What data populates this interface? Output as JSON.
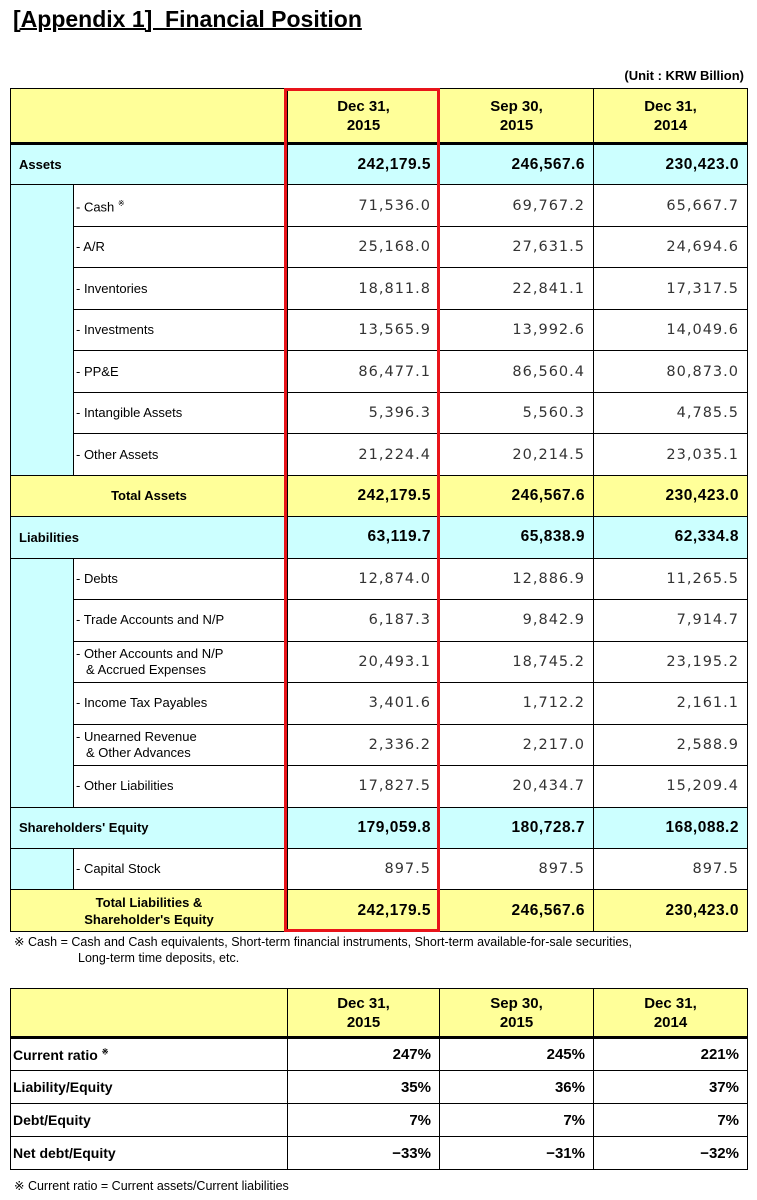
{
  "title": "[Appendix 1]  Financial Position",
  "unit": "(Unit : KRW Billion)",
  "columns": [
    [
      "Dec 31,",
      "2015"
    ],
    [
      "Sep 30,",
      "2015"
    ],
    [
      "Dec 31,",
      "2014"
    ]
  ],
  "rows": [
    {
      "type": "sec",
      "label": "Assets",
      "values": [
        "242,179.5",
        "246,567.6",
        "230,423.0"
      ]
    },
    {
      "type": "sub",
      "label": "- Cash",
      "mark": "※",
      "values": [
        "71,536.0",
        "69,767.2",
        "65,667.7"
      ]
    },
    {
      "type": "sub",
      "label": "- A/R",
      "values": [
        "25,168.0",
        "27,631.5",
        "24,694.6"
      ]
    },
    {
      "type": "sub",
      "label": "- Inventories",
      "values": [
        "18,811.8",
        "22,841.1",
        "17,317.5"
      ]
    },
    {
      "type": "sub",
      "label": "- Investments",
      "values": [
        "13,565.9",
        "13,992.6",
        "14,049.6"
      ]
    },
    {
      "type": "sub",
      "label": "- PP&E",
      "values": [
        "86,477.1",
        "86,560.4",
        "80,873.0"
      ]
    },
    {
      "type": "sub",
      "label": "- Intangible Assets",
      "values": [
        "5,396.3",
        "5,560.3",
        "4,785.5"
      ]
    },
    {
      "type": "sub",
      "label": "- Other Assets",
      "values": [
        "21,224.4",
        "20,214.5",
        "23,035.1"
      ]
    },
    {
      "type": "tot",
      "label": "Total Assets",
      "values": [
        "242,179.5",
        "246,567.6",
        "230,423.0"
      ]
    },
    {
      "type": "sec",
      "label": "Liabilities",
      "values": [
        "63,119.7",
        "65,838.9",
        "62,334.8"
      ]
    },
    {
      "type": "sub",
      "label": "- Debts",
      "values": [
        "12,874.0",
        "12,886.9",
        "11,265.5"
      ]
    },
    {
      "type": "sub",
      "label": "- Trade Accounts and N/P",
      "values": [
        "6,187.3",
        "9,842.9",
        "7,914.7"
      ]
    },
    {
      "type": "sub",
      "label": "- Other Accounts and N/P",
      "label2": "& Accrued Expenses",
      "values": [
        "20,493.1",
        "18,745.2",
        "23,195.2"
      ]
    },
    {
      "type": "sub",
      "label": "- Income Tax Payables",
      "values": [
        "3,401.6",
        "1,712.2",
        "2,161.1"
      ]
    },
    {
      "type": "sub",
      "label": "- Unearned Revenue",
      "label2": "& Other Advances",
      "values": [
        "2,336.2",
        "2,217.0",
        "2,588.9"
      ]
    },
    {
      "type": "sub",
      "label": "- Other Liabilities",
      "values": [
        "17,827.5",
        "20,434.7",
        "15,209.4"
      ]
    },
    {
      "type": "sec",
      "label": "Shareholders' Equity",
      "values": [
        "179,059.8",
        "180,728.7",
        "168,088.2"
      ]
    },
    {
      "type": "sub",
      "label": "- Capital Stock",
      "values": [
        "897.5",
        "897.5",
        "897.5"
      ]
    },
    {
      "type": "tot",
      "label": "Total Liabilities &",
      "label2": "Shareholder's Equity",
      "values": [
        "242,179.5",
        "246,567.6",
        "230,423.0"
      ]
    }
  ],
  "note1": [
    "※ Cash = Cash and Cash equivalents, Short-term financial instruments, Short-term available-for-sale securities,",
    "Long-term time deposits, etc."
  ],
  "ratios": [
    {
      "label": "Current ratio",
      "mark": "※",
      "values": [
        "247%",
        "245%",
        "221%"
      ]
    },
    {
      "label": "Liability/Equity",
      "values": [
        "35%",
        "36%",
        "37%"
      ]
    },
    {
      "label": "Debt/Equity",
      "values": [
        "7%",
        "7%",
        "7%"
      ]
    },
    {
      "label": "Net debt/Equity",
      "values": [
        "−33%",
        "−31%",
        "−32%"
      ]
    }
  ],
  "note2": "※ Current ratio = Current assets/Current liabilities",
  "colors": {
    "header": "#ffff99",
    "section": "#ccffff",
    "highlight": "#e8141a"
  }
}
